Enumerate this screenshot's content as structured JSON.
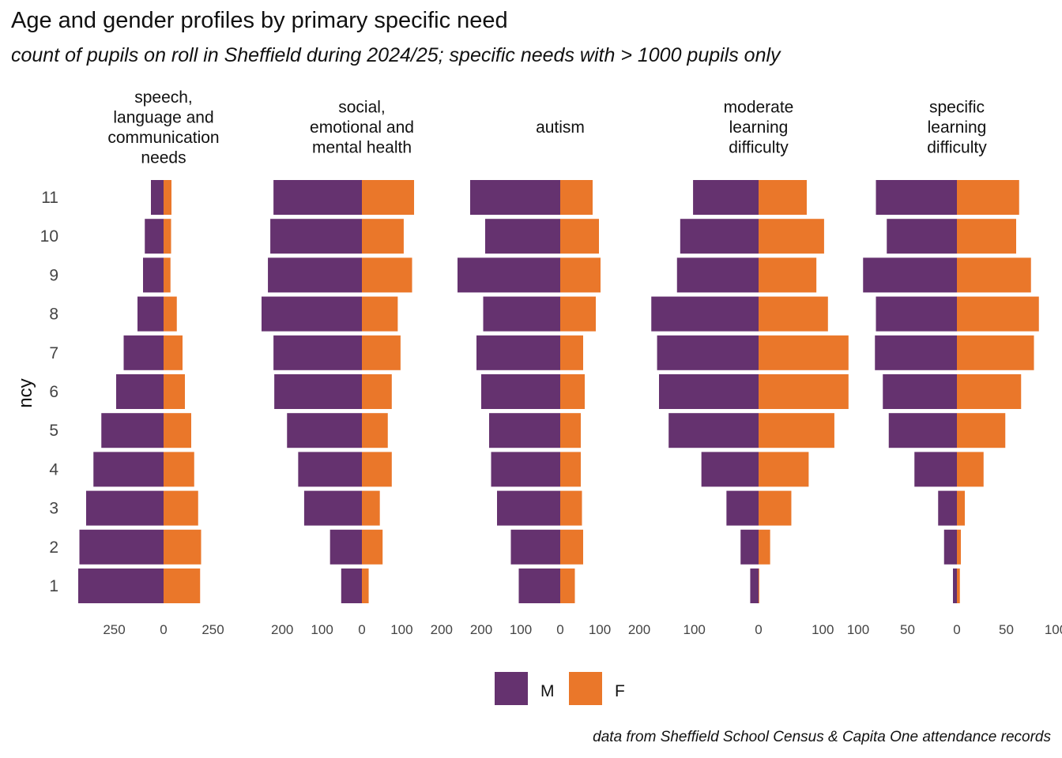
{
  "title": "Age and gender profiles by primary specific need",
  "subtitle": "count of pupils on roll in Sheffield during 2024/25; specific needs with > 1000 pupils only",
  "caption": "data from Sheffield School Census & Capita One attendance records",
  "chart_data": {
    "type": "bar",
    "orientation": "horizontal-population-pyramid",
    "ylabel": "ncy",
    "categories": [
      "1",
      "2",
      "3",
      "4",
      "5",
      "6",
      "7",
      "8",
      "9",
      "10",
      "11"
    ],
    "legend": {
      "position": "bottom",
      "items": [
        {
          "name": "M",
          "color": "#65326f"
        },
        {
          "name": "F",
          "color": "#ea772a"
        }
      ]
    },
    "grid": false,
    "panels": [
      {
        "label_lines": [
          "speech,",
          "language and",
          "communication",
          "needs"
        ],
        "xlim": [
          -500,
          500
        ],
        "ticks": [
          -250,
          0,
          250
        ],
        "tick_labels": [
          "250",
          "0",
          "250"
        ],
        "series": [
          {
            "name": "M",
            "values": [
              432,
              426,
              392,
              355,
              315,
              240,
              202,
              132,
              104,
              95,
              64
            ]
          },
          {
            "name": "F",
            "values": [
              185,
              190,
              175,
              155,
              140,
              108,
              96,
              67,
              35,
              38,
              40
            ]
          }
        ]
      },
      {
        "label_lines": [
          "social,",
          "emotional and",
          "mental health"
        ],
        "xlim": [
          -250,
          250
        ],
        "ticks": [
          -200,
          -100,
          0,
          100,
          200
        ],
        "tick_labels": [
          "200",
          "100",
          "0",
          "100",
          "200"
        ],
        "series": [
          {
            "name": "M",
            "values": [
              52,
              80,
              145,
              160,
              188,
              220,
              222,
              252,
              236,
              230,
              222
            ]
          },
          {
            "name": "F",
            "values": [
              17,
              52,
              45,
              75,
              65,
              75,
              97,
              90,
              126,
              105,
              131
            ]
          }
        ]
      },
      {
        "label_lines": [
          "autism"
        ],
        "xlim": [
          -250,
          250
        ],
        "ticks": [
          -200,
          -100,
          0,
          100,
          200
        ],
        "tick_labels": [
          "200",
          "100",
          "0",
          "100",
          "200"
        ],
        "series": [
          {
            "name": "M",
            "values": [
              105,
              125,
              160,
              175,
              180,
              200,
              212,
              195,
              260,
              190,
              228
            ]
          },
          {
            "name": "F",
            "values": [
              37,
              58,
              55,
              52,
              52,
              62,
              58,
              90,
              102,
              98,
              82
            ]
          }
        ]
      },
      {
        "label_lines": [
          "moderate",
          "learning",
          "difficulty"
        ],
        "xlim": [
          -155,
          155
        ],
        "ticks": [
          -100,
          0,
          100
        ],
        "tick_labels": [
          "100",
          "0",
          "100"
        ],
        "series": [
          {
            "name": "M",
            "values": [
              13,
              28,
              50,
              89,
              140,
              155,
              158,
              167,
              127,
              122,
              102
            ]
          },
          {
            "name": "F",
            "values": [
              1,
              18,
              51,
              78,
              118,
              140,
              140,
              108,
              90,
              102,
              75
            ]
          }
        ]
      },
      {
        "label_lines": [
          "specific",
          "learning",
          "difficulty"
        ],
        "xlim": [
          -100,
          100
        ],
        "ticks": [
          -100,
          -50,
          0,
          50,
          100
        ],
        "tick_labels": [
          "100",
          "50",
          "0",
          "50",
          "100"
        ],
        "series": [
          {
            "name": "M",
            "values": [
              4,
              13,
              19,
              43,
              69,
              75,
              83,
              82,
              95,
              71,
              82
            ]
          },
          {
            "name": "F",
            "values": [
              3,
              4,
              8,
              27,
              49,
              65,
              78,
              83,
              75,
              60,
              63
            ]
          }
        ]
      }
    ]
  }
}
